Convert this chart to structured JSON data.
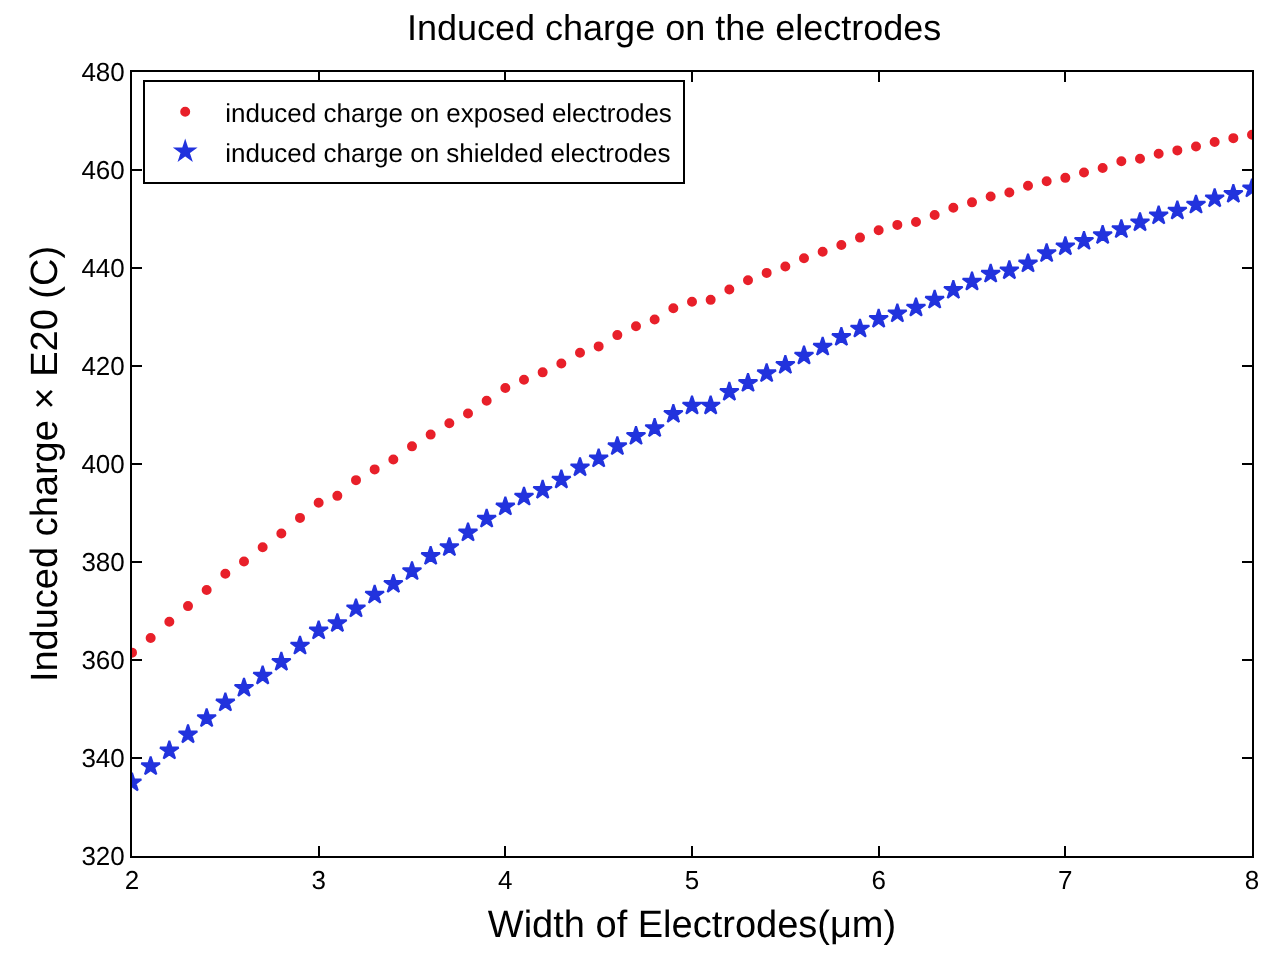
{
  "chart_data": {
    "type": "scatter",
    "title": "Induced charge on the electrodes",
    "xlabel": "Width of Electrodes(μm)",
    "ylabel": "Induced charge × E20 (C)",
    "x": [
      2.0,
      2.1,
      2.2,
      2.3,
      2.4,
      2.5,
      2.6,
      2.7,
      2.8,
      2.9,
      3.0,
      3.1,
      3.2,
      3.3,
      3.4,
      3.5,
      3.6,
      3.7,
      3.8,
      3.9,
      4.0,
      4.1,
      4.2,
      4.3,
      4.4,
      4.5,
      4.6,
      4.7,
      4.8,
      4.9,
      5.0,
      5.1,
      5.2,
      5.3,
      5.4,
      5.5,
      5.6,
      5.7,
      5.8,
      5.9,
      6.0,
      6.1,
      6.2,
      6.3,
      6.4,
      6.5,
      6.6,
      6.7,
      6.8,
      6.9,
      7.0,
      7.1,
      7.2,
      7.3,
      7.4,
      7.5,
      7.6,
      7.7,
      7.8,
      7.9,
      8.0
    ],
    "series": [
      {
        "name": "induced charge on exposed electrodes",
        "color": "#e8202a",
        "marker": "circle",
        "values": [
          361.5,
          364.5,
          367.8,
          371,
          374.3,
          377.6,
          380.1,
          383,
          385.8,
          389,
          392.1,
          393.5,
          396.7,
          398.9,
          400.9,
          403.6,
          406,
          408.3,
          410.3,
          412.9,
          415.5,
          417.2,
          418.7,
          420.5,
          422.7,
          424,
          426.3,
          428.1,
          429.5,
          431.8,
          433.1,
          433.5,
          435.6,
          437.5,
          439,
          440.3,
          442,
          443.3,
          444.7,
          446.2,
          447.7,
          448.8,
          449.4,
          450.8,
          452.3,
          453.4,
          454.6,
          455.4,
          456.8,
          457.7,
          458.4,
          459.5,
          460.4,
          461.8,
          462.3,
          463.3,
          464,
          464.8,
          465.7,
          466.5,
          467.2
        ]
      },
      {
        "name": "induced charge on shielded electrodes",
        "color": "#2233dd",
        "marker": "star",
        "values": [
          335,
          338.3,
          341.5,
          344.8,
          348.1,
          351.3,
          354.3,
          356.8,
          359.6,
          362.9,
          366,
          367.5,
          370.5,
          373.3,
          375.5,
          378.1,
          381.2,
          383,
          386,
          388.8,
          391.3,
          393.3,
          394.7,
          396.8,
          399.3,
          401.1,
          403.6,
          405.7,
          407.3,
          410.2,
          411.9,
          411.9,
          414.7,
          416.5,
          418.5,
          420.2,
          422.1,
          423.9,
          425.9,
          427.6,
          429.6,
          430.7,
          431.9,
          433.5,
          435.5,
          437.2,
          438.8,
          439.5,
          440.9,
          443,
          444.4,
          445.5,
          446.7,
          447.9,
          449.3,
          450.7,
          451.7,
          452.9,
          454.2,
          455.1,
          456.2
        ]
      }
    ],
    "xlim": [
      2,
      8
    ],
    "xticks": [
      2,
      3,
      4,
      5,
      6,
      7,
      8
    ],
    "ylim": [
      320,
      480
    ],
    "yticks": [
      320,
      340,
      360,
      380,
      400,
      420,
      440,
      460,
      480
    ],
    "grid": false,
    "legend": "top left"
  }
}
